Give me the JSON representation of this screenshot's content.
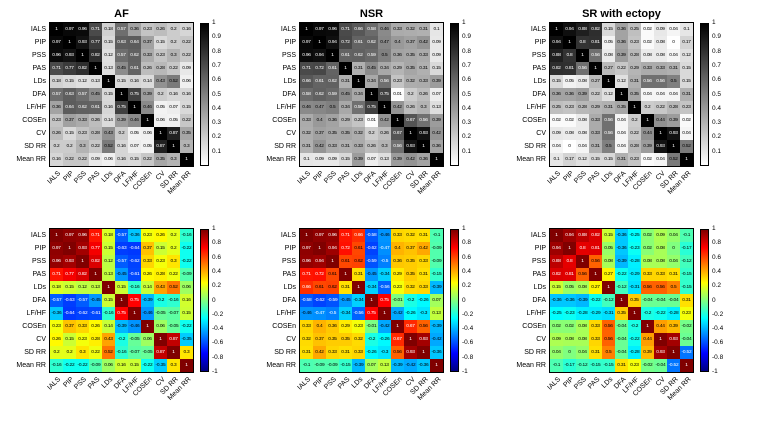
{
  "figure_title": "Correlation matrices of HRV metrics for AF, NSR and SR with ectopy",
  "chart_data": [
    {
      "type": "heatmap",
      "title": "AF",
      "colormap": "gray",
      "values_shown": "absolute",
      "scale": [
        0,
        1
      ],
      "colorbar_ticks": [
        1,
        0.9,
        0.8,
        0.7,
        0.6,
        0.5,
        0.4,
        0.3,
        0.2,
        0.1
      ],
      "categories": [
        "IALS",
        "PIP",
        "PSS",
        "PAS",
        "LDs",
        "DFA",
        "LF/HF",
        "COSEn",
        "CV",
        "SD RR",
        "Mean RR"
      ],
      "matrix": [
        [
          1,
          0.97,
          0.96,
          0.71,
          0.18,
          0.57,
          0.36,
          0.23,
          0.26,
          0.2,
          0.16
        ],
        [
          0.97,
          1,
          0.93,
          0.77,
          0.15,
          0.63,
          0.64,
          0.37,
          0.15,
          0.2,
          0.22
        ],
        [
          0.96,
          0.93,
          1,
          0.82,
          0.12,
          0.57,
          0.62,
          0.33,
          0.23,
          0.3,
          0.22
        ],
        [
          0.71,
          0.77,
          0.82,
          1,
          0.13,
          0.45,
          0.61,
          0.26,
          0.28,
          0.22,
          0.09
        ],
        [
          0.18,
          0.15,
          0.12,
          0.13,
          1,
          0.15,
          0.16,
          0.14,
          0.43,
          0.52,
          0.06
        ],
        [
          0.57,
          0.63,
          0.57,
          0.45,
          0.15,
          1,
          0.75,
          0.39,
          0.2,
          0.16,
          0.16
        ],
        [
          0.36,
          0.64,
          0.62,
          0.61,
          0.16,
          0.75,
          1,
          0.46,
          0.05,
          0.07,
          0.15
        ],
        [
          0.23,
          0.37,
          0.33,
          0.26,
          0.14,
          0.39,
          0.46,
          1,
          0.06,
          0.05,
          0.22
        ],
        [
          0.26,
          0.15,
          0.23,
          0.28,
          0.43,
          0.2,
          0.05,
          0.06,
          1,
          0.87,
          0.35
        ],
        [
          0.2,
          0.2,
          0.3,
          0.22,
          0.52,
          0.16,
          0.07,
          0.05,
          0.87,
          1,
          0.3
        ],
        [
          0.16,
          0.22,
          0.22,
          0.09,
          0.06,
          0.16,
          0.15,
          0.22,
          0.35,
          0.3,
          1
        ]
      ]
    },
    {
      "type": "heatmap",
      "title": "NSR",
      "colormap": "gray",
      "values_shown": "absolute",
      "scale": [
        0,
        1
      ],
      "colorbar_ticks": [
        1,
        0.9,
        0.8,
        0.7,
        0.6,
        0.5,
        0.4,
        0.3,
        0.2,
        0.1
      ],
      "categories": [
        "IALS",
        "PIP",
        "PSS",
        "PAS",
        "LDs",
        "DFA",
        "LF/HF",
        "COSEn",
        "CV",
        "SD RR",
        "Mean RR"
      ],
      "matrix": [
        [
          1,
          0.97,
          0.96,
          0.71,
          0.66,
          0.58,
          0.46,
          0.33,
          0.32,
          0.31,
          0.1
        ],
        [
          0.97,
          1,
          0.94,
          0.72,
          0.61,
          0.62,
          0.47,
          0.4,
          0.37,
          0.42,
          0.09
        ],
        [
          0.96,
          0.94,
          1,
          0.61,
          0.62,
          0.59,
          0.5,
          0.36,
          0.35,
          0.33,
          0.09
        ],
        [
          0.71,
          0.72,
          0.61,
          1,
          0.31,
          0.45,
          0.34,
          0.29,
          0.35,
          0.31,
          0.15
        ],
        [
          0.66,
          0.61,
          0.62,
          0.31,
          1,
          0.34,
          0.56,
          0.23,
          0.32,
          0.33,
          0.39
        ],
        [
          0.58,
          0.62,
          0.59,
          0.45,
          0.34,
          1,
          0.75,
          0.01,
          0.2,
          0.26,
          0.07
        ],
        [
          0.46,
          0.47,
          0.5,
          0.34,
          0.56,
          0.75,
          1,
          0.42,
          0.26,
          0.3,
          0.13
        ],
        [
          0.33,
          0.4,
          0.36,
          0.29,
          0.23,
          0.01,
          0.42,
          1,
          0.67,
          0.56,
          0.39
        ],
        [
          0.32,
          0.37,
          0.35,
          0.35,
          0.32,
          0.2,
          0.26,
          0.67,
          1,
          0.93,
          0.42
        ],
        [
          0.31,
          0.42,
          0.33,
          0.31,
          0.33,
          0.26,
          0.3,
          0.56,
          0.93,
          1,
          0.36
        ],
        [
          0.1,
          0.09,
          0.09,
          0.15,
          0.39,
          0.07,
          0.13,
          0.39,
          0.42,
          0.36,
          1
        ]
      ]
    },
    {
      "type": "heatmap",
      "title": "SR with ectopy",
      "colormap": "gray",
      "values_shown": "absolute",
      "scale": [
        0,
        1
      ],
      "colorbar_ticks": [
        1,
        0.9,
        0.8,
        0.7,
        0.6,
        0.5,
        0.4,
        0.3,
        0.2,
        0.1
      ],
      "categories": [
        "IALS",
        "PIP",
        "PSS",
        "PAS",
        "LDs",
        "DFA",
        "LF/HF",
        "COSEn",
        "CV",
        "SD RR",
        "Mean RR"
      ],
      "matrix": [
        [
          1,
          0.94,
          0.88,
          0.82,
          0.15,
          0.36,
          0.25,
          0.02,
          0.09,
          0.04,
          0.1
        ],
        [
          0.94,
          1,
          0.8,
          0.81,
          0.05,
          0.36,
          0.23,
          0.02,
          0.08,
          0,
          0.17
        ],
        [
          0.88,
          0.8,
          1,
          0.56,
          0.08,
          0.39,
          0.28,
          0.08,
          0.08,
          0.04,
          0.12
        ],
        [
          0.82,
          0.81,
          0.56,
          1,
          0.27,
          0.22,
          0.29,
          0.33,
          0.33,
          0.31,
          0.15
        ],
        [
          0.15,
          0.05,
          0.08,
          0.27,
          1,
          0.12,
          0.31,
          0.56,
          0.56,
          0.5,
          0.15
        ],
        [
          0.36,
          0.36,
          0.39,
          0.22,
          0.12,
          1,
          0.35,
          0.04,
          0.04,
          0.04,
          0.31
        ],
        [
          0.25,
          0.23,
          0.28,
          0.29,
          0.31,
          0.35,
          1,
          0.2,
          0.22,
          0.28,
          0.23
        ],
        [
          0.02,
          0.02,
          0.08,
          0.33,
          0.56,
          0.04,
          0.2,
          1,
          0.44,
          0.39,
          0.02
        ],
        [
          0.09,
          0.08,
          0.08,
          0.33,
          0.56,
          0.04,
          0.22,
          0.44,
          1,
          0.93,
          0.04
        ],
        [
          0.04,
          0,
          0.04,
          0.31,
          0.5,
          0.04,
          0.28,
          0.39,
          0.93,
          1,
          0.52
        ],
        [
          0.1,
          0.17,
          0.12,
          0.15,
          0.15,
          0.31,
          0.23,
          0.02,
          0.04,
          0.52,
          1
        ]
      ]
    },
    {
      "type": "heatmap",
      "title": "",
      "colormap": "jet",
      "values_shown": "signed",
      "scale": [
        -1,
        1
      ],
      "colorbar_ticks": [
        1,
        0.8,
        0.6,
        0.4,
        0.2,
        0,
        -0.2,
        -0.4,
        -0.6,
        -0.8,
        -1
      ],
      "categories": [
        "IALS",
        "PIP",
        "PSS",
        "PAS",
        "LDs",
        "DFA",
        "LF/HF",
        "COSEn",
        "CV",
        "SD RR",
        "Mean RR"
      ],
      "matrix": [
        [
          1,
          0.97,
          0.96,
          0.71,
          0.18,
          -0.57,
          -0.36,
          0.23,
          0.26,
          0.2,
          -0.16
        ],
        [
          0.97,
          1,
          0.93,
          0.77,
          0.15,
          -0.63,
          -0.64,
          0.37,
          0.15,
          0.2,
          -0.22
        ],
        [
          0.96,
          0.93,
          1,
          0.82,
          0.12,
          -0.57,
          -0.62,
          0.33,
          0.23,
          0.3,
          -0.22
        ],
        [
          0.71,
          0.77,
          0.82,
          1,
          0.13,
          -0.45,
          -0.61,
          0.26,
          0.28,
          0.22,
          -0.09
        ],
        [
          0.18,
          0.15,
          0.12,
          0.13,
          1,
          0.15,
          -0.16,
          0.14,
          0.43,
          0.52,
          0.06
        ],
        [
          -0.57,
          -0.63,
          -0.57,
          -0.45,
          0.15,
          1,
          0.75,
          -0.39,
          -0.2,
          -0.16,
          0.16
        ],
        [
          -0.36,
          -0.64,
          -0.62,
          -0.61,
          -0.16,
          0.75,
          1,
          -0.46,
          -0.05,
          -0.07,
          0.15
        ],
        [
          0.23,
          0.37,
          0.33,
          0.26,
          0.14,
          -0.39,
          -0.46,
          1,
          0.06,
          -0.05,
          -0.22
        ],
        [
          0.26,
          0.15,
          0.23,
          0.28,
          0.43,
          -0.2,
          -0.05,
          0.06,
          1,
          0.87,
          -0.35
        ],
        [
          0.2,
          0.2,
          0.3,
          0.22,
          0.52,
          -0.16,
          -0.07,
          -0.05,
          0.87,
          1,
          0.3
        ],
        [
          -0.16,
          -0.22,
          -0.22,
          -0.09,
          0.06,
          0.16,
          0.15,
          -0.22,
          -0.35,
          0.3,
          1
        ]
      ]
    },
    {
      "type": "heatmap",
      "title": "",
      "colormap": "jet",
      "values_shown": "signed",
      "scale": [
        -1,
        1
      ],
      "colorbar_ticks": [
        1,
        0.8,
        0.6,
        0.4,
        0.2,
        0,
        -0.2,
        -0.4,
        -0.6,
        -0.8,
        -1
      ],
      "categories": [
        "IALS",
        "PIP",
        "PSS",
        "PAS",
        "LDs",
        "DFA",
        "LF/HF",
        "COSEn",
        "CV",
        "SD RR",
        "Mean RR"
      ],
      "matrix": [
        [
          1,
          0.97,
          0.96,
          0.71,
          0.66,
          -0.58,
          -0.46,
          0.33,
          0.32,
          0.31,
          -0.1
        ],
        [
          0.97,
          1,
          0.94,
          0.72,
          0.61,
          -0.62,
          -0.47,
          0.4,
          0.37,
          0.42,
          -0.09
        ],
        [
          0.96,
          0.94,
          1,
          0.61,
          0.62,
          -0.59,
          -0.5,
          0.36,
          0.35,
          0.33,
          -0.09
        ],
        [
          0.71,
          0.72,
          0.61,
          1,
          0.31,
          -0.45,
          -0.34,
          0.29,
          0.35,
          0.31,
          -0.15
        ],
        [
          0.66,
          0.61,
          0.62,
          0.31,
          1,
          -0.34,
          -0.56,
          0.23,
          0.32,
          0.33,
          -0.39
        ],
        [
          -0.58,
          -0.62,
          -0.59,
          -0.45,
          -0.34,
          1,
          0.75,
          -0.01,
          -0.2,
          -0.26,
          0.07
        ],
        [
          -0.46,
          -0.47,
          -0.5,
          -0.34,
          -0.56,
          0.75,
          1,
          -0.42,
          -0.26,
          -0.3,
          0.13
        ],
        [
          0.33,
          0.4,
          0.36,
          0.29,
          0.23,
          -0.01,
          -0.42,
          1,
          0.67,
          0.56,
          -0.39
        ],
        [
          0.32,
          0.37,
          0.35,
          0.35,
          0.32,
          -0.2,
          -0.26,
          0.67,
          1,
          0.93,
          -0.42
        ],
        [
          0.31,
          0.42,
          0.33,
          0.31,
          0.33,
          -0.26,
          -0.3,
          0.56,
          0.93,
          1,
          -0.36
        ],
        [
          -0.1,
          -0.09,
          -0.09,
          -0.15,
          -0.39,
          0.07,
          0.13,
          -0.39,
          -0.42,
          -0.36,
          1
        ]
      ]
    },
    {
      "type": "heatmap",
      "title": "",
      "colormap": "jet",
      "values_shown": "signed",
      "scale": [
        -1,
        1
      ],
      "colorbar_ticks": [
        1,
        0.8,
        0.6,
        0.4,
        0.2,
        0,
        -0.2,
        -0.4,
        -0.6,
        -0.8,
        -1
      ],
      "categories": [
        "IALS",
        "PIP",
        "PSS",
        "PAS",
        "LDs",
        "DFA",
        "LF/HF",
        "COSEn",
        "CV",
        "SD RR",
        "Mean RR"
      ],
      "matrix": [
        [
          1,
          0.94,
          0.88,
          0.82,
          0.15,
          -0.36,
          -0.25,
          0.02,
          0.09,
          0.04,
          -0.1
        ],
        [
          0.94,
          1,
          0.8,
          0.81,
          0.05,
          -0.36,
          -0.23,
          0.02,
          0.08,
          0,
          -0.17
        ],
        [
          0.88,
          0.8,
          1,
          0.56,
          0.08,
          -0.39,
          -0.28,
          0.08,
          0.08,
          0.04,
          -0.12
        ],
        [
          0.82,
          0.81,
          0.56,
          1,
          0.27,
          -0.22,
          -0.29,
          0.33,
          0.33,
          0.31,
          -0.15
        ],
        [
          0.15,
          0.05,
          0.08,
          0.27,
          1,
          -0.12,
          -0.31,
          0.56,
          0.56,
          0.5,
          -0.15
        ],
        [
          -0.36,
          -0.36,
          -0.39,
          -0.22,
          -0.12,
          1,
          0.35,
          -0.04,
          -0.04,
          -0.04,
          0.31
        ],
        [
          -0.25,
          -0.23,
          -0.28,
          -0.29,
          -0.31,
          0.35,
          1,
          -0.2,
          -0.22,
          -0.28,
          0.23
        ],
        [
          0.02,
          0.02,
          0.08,
          0.33,
          0.56,
          -0.04,
          -0.2,
          1,
          0.44,
          0.39,
          -0.02
        ],
        [
          0.09,
          0.08,
          0.08,
          0.33,
          0.56,
          -0.04,
          -0.22,
          0.44,
          1,
          0.93,
          -0.04
        ],
        [
          0.04,
          0,
          0.04,
          0.31,
          0.5,
          -0.04,
          -0.28,
          0.39,
          0.93,
          1,
          -0.52
        ],
        [
          -0.1,
          -0.17,
          -0.12,
          -0.15,
          -0.15,
          0.31,
          0.23,
          -0.02,
          -0.04,
          -0.52,
          1
        ]
      ]
    }
  ]
}
